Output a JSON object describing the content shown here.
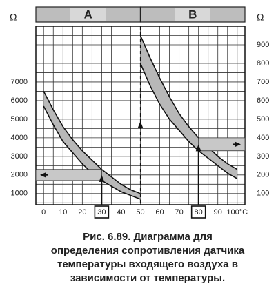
{
  "chart_data": {
    "type": "band",
    "y_label": "Ω",
    "y2_label": "Ω",
    "xlim": [
      -4,
      104
    ],
    "xticks": [
      0,
      10,
      20,
      30,
      40,
      50,
      60,
      70,
      80,
      90,
      {
        "value": 100,
        "label": "100°C"
      }
    ],
    "ylim": [
      400,
      10000
    ],
    "yticks": [
      1000,
      2000,
      3000,
      4000,
      5000,
      6000,
      7000
    ],
    "y2lim": [
      40,
      1000
    ],
    "y2ticks": [
      100,
      200,
      300,
      400,
      500,
      600,
      700,
      800,
      900
    ],
    "grid": true,
    "xgrid_step": 5,
    "ygrid_step": 500,
    "series": [
      {
        "name": "A",
        "color": "#b8b8b8",
        "marked_x": 30,
        "x": [
          0,
          5,
          10,
          15,
          20,
          25,
          30,
          35,
          40,
          45,
          50
        ],
        "upper": [
          6500,
          5500,
          4600,
          3900,
          3300,
          2800,
          2300,
          1900,
          1500,
          1200,
          1000
        ],
        "lower": [
          5700,
          4700,
          3800,
          3200,
          2600,
          2100,
          1700,
          1400,
          1100,
          900,
          700
        ]
      },
      {
        "name": "B",
        "color": "#b8b8b8",
        "axis": "y2",
        "marked_x": 80,
        "x": [
          50,
          55,
          60,
          65,
          70,
          75,
          80,
          85,
          90,
          95,
          100
        ],
        "upper": [
          950,
          830,
          720,
          620,
          530,
          460,
          400,
          350,
          300,
          260,
          230
        ],
        "lower": [
          800,
          680,
          580,
          500,
          440,
          380,
          330,
          290,
          250,
          210,
          180
        ]
      }
    ],
    "caption": [
      "Рис. 6.89. Диаграмма для",
      "определения сопротивления датчика",
      "температуры входящего воздуха в",
      "зависимости от температуры."
    ]
  }
}
